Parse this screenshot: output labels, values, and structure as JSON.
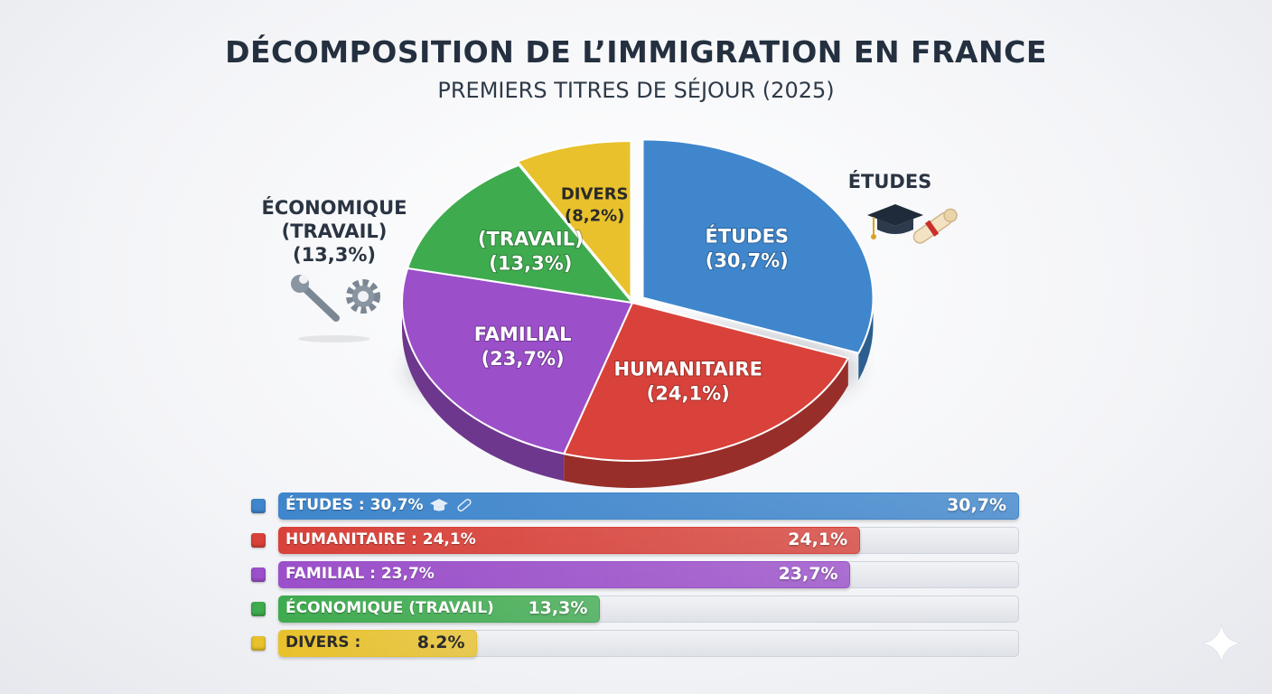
{
  "title": "DÉCOMPOSITION DE L’IMMIGRATION EN FRANCE",
  "subtitle": "PREMIERS TITRES DE SÉJOUR (2025)",
  "side_labels": {
    "left": [
      "ÉCONOMIQUE",
      "(TRAVAIL)",
      "(13,3%)"
    ],
    "right": "ÉTUDES"
  },
  "colors": {
    "etudes": "#3f86cc",
    "humanitaire": "#d8423a",
    "familial": "#9b4fc9",
    "economique": "#3fab4f",
    "divers": "#e8c12c"
  },
  "icons": {
    "left": [
      "wrench-icon",
      "gear-icon"
    ],
    "right": [
      "graduation-cap-icon",
      "diploma-icon"
    ]
  },
  "chart_data": {
    "type": "pie",
    "slices": [
      {
        "key": "etudes",
        "labels": [
          "ÉTUDES",
          "(30,7%)"
        ],
        "value": 30.7
      },
      {
        "key": "humanitaire",
        "labels": [
          "HUMANITAIRE",
          "(24,1%)"
        ],
        "value": 24.1
      },
      {
        "key": "familial",
        "labels": [
          "FAMILIAL",
          "(23,7%)"
        ],
        "value": 23.7
      },
      {
        "key": "economique",
        "labels": [
          "(TRAVAIL)",
          "(13,3%)"
        ],
        "value": 13.3
      },
      {
        "key": "divers",
        "labels": [
          "DIVERS",
          "(8,2%)"
        ],
        "value": 8.2
      }
    ],
    "bars": [
      {
        "key": "etudes",
        "label": "ÉTUDES : 30,7%",
        "value": 30.7,
        "value_label": "30,7%"
      },
      {
        "key": "humanitaire",
        "label": "HUMANITAIRE : 24,1%",
        "value": 24.1,
        "value_label": "24,1%"
      },
      {
        "key": "familial",
        "label": "FAMILIAL : 23,7%",
        "value": 23.7,
        "value_label": "23,7%"
      },
      {
        "key": "economique",
        "label": "ÉCONOMIQUE (TRAVAIL)",
        "value": 13.3,
        "value_label": "13,3%"
      },
      {
        "key": "divers",
        "label": "DIVERS :",
        "value": 8.2,
        "value_label": "8.2%"
      }
    ]
  }
}
